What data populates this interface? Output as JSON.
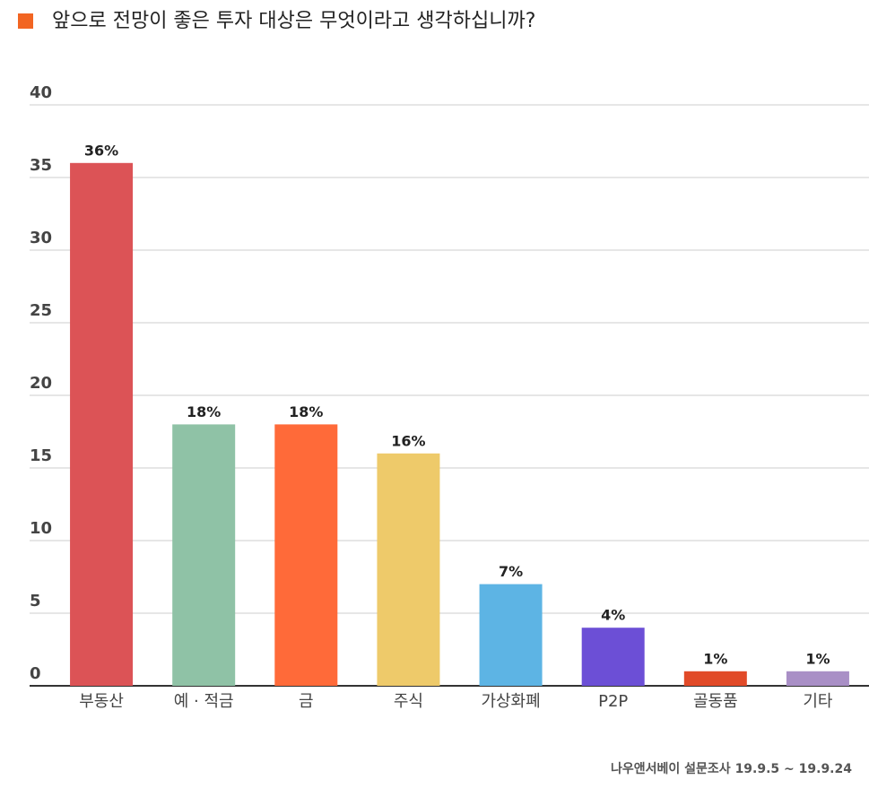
{
  "chart_data": {
    "type": "bar",
    "title": "앞으로 전망이 좋은 투자 대상은 무엇이라고 생각하십니까?",
    "categories": [
      "부동산",
      "예 · 적금",
      "금",
      "주식",
      "가상화폐",
      "P2P",
      "골동품",
      "기타"
    ],
    "values": [
      36,
      18,
      18,
      16,
      7,
      4,
      1,
      1
    ],
    "value_labels": [
      "36%",
      "18%",
      "18%",
      "16%",
      "7%",
      "4%",
      "1%",
      "1%"
    ],
    "colors": [
      "#dc5356",
      "#8fc2a6",
      "#ff6a39",
      "#eeca6a",
      "#5db4e4",
      "#6c4fd6",
      "#e14a28",
      "#a98fc6"
    ],
    "ylim": [
      0,
      40
    ],
    "yticks": [
      0,
      5,
      10,
      15,
      20,
      25,
      30,
      35,
      40
    ],
    "grid": true,
    "source": "나우앤서베이 설문조사 19.9.5 ~ 19.9.24"
  }
}
